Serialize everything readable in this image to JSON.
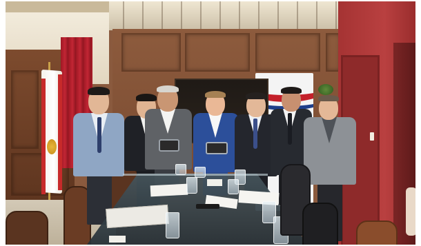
{
  "scene": {
    "colors": {
      "frame": "#ffffff",
      "wall_wood": "#8a5a3e",
      "wood_panel_dark": "#6b3f28",
      "ceiling": "#d8cdb8",
      "right_wall": "#b03a3a",
      "curtain": "#b3202c",
      "left_wall": "#efe7d6",
      "table_glass": "#3c4a4f",
      "banner_red": "#c4202a",
      "banner_blue": "#1e3f8a",
      "suit_grey": "#6e7276",
      "suit_blue": "#2c4f9a",
      "suit_dark": "#22262c",
      "carpet": "#c9bfae"
    },
    "icons": {
      "flag": "flag-icon",
      "gift": "gift-box-icon"
    }
  }
}
